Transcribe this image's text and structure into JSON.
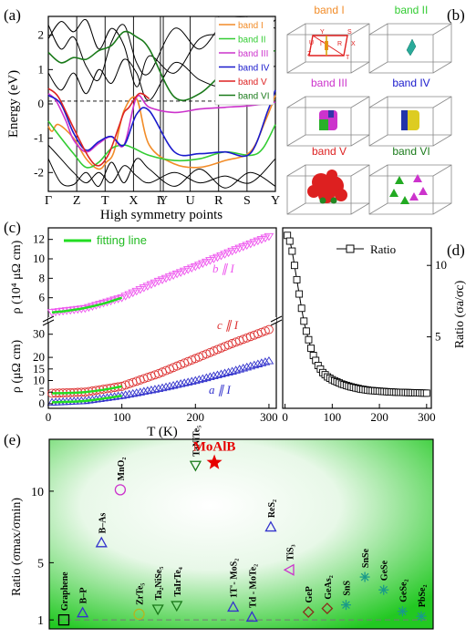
{
  "panel_labels": {
    "a": "(a)",
    "b": "(b)",
    "c": "(c)",
    "d": "(d)",
    "e": "(e)"
  },
  "colors": {
    "band_I": "#f28c28",
    "band_II": "#33cc33",
    "band_III": "#cc33cc",
    "band_IV": "#1a1acc",
    "band_V": "#dd2222",
    "band_VI": "#1a7a1a",
    "black": "#000000",
    "fit_green": "#22dd22",
    "b_magenta": "#ee55ee",
    "c_red": "#dd3333",
    "a_blue": "#3333cc",
    "star": "#e60000",
    "olive": "#b5b520",
    "teal": "#1a9a8a",
    "brown": "#8b2a1a",
    "bg_green": "#1ec81e"
  },
  "chart_data": [
    {
      "id": "a",
      "type": "line",
      "title": "",
      "xlabel": "High symmetry points",
      "ylabel": "Energy (eV)",
      "ylim": [
        -2.55,
        2.55
      ],
      "yticks": [
        "-2",
        "-1",
        "0",
        "1",
        "2"
      ],
      "kpoints": [
        "Γ",
        "Z",
        "T",
        "X",
        "Γ",
        "Y",
        "U",
        "R",
        "S",
        "Y"
      ],
      "legend": {
        "position": "top-right",
        "entries": [
          "band I",
          "band II",
          "band III",
          "band IV",
          "band V",
          "band VI"
        ]
      },
      "series": [
        {
          "name": "band I",
          "color_key": "band_I",
          "x": [
            0,
            0.15,
            0.4,
            1,
            1.5,
            2,
            2.3,
            2.6,
            3,
            3.5,
            4,
            5,
            6,
            7,
            8,
            8.6,
            9
          ],
          "y": [
            -0.65,
            -0.8,
            -0.6,
            -1.0,
            -1.6,
            -1.9,
            -1.7,
            -1.4,
            -0.2,
            0.15,
            -1.2,
            -1.75,
            -1.85,
            -1.65,
            -1.4,
            -0.5,
            0.25
          ]
        },
        {
          "name": "band II",
          "color_key": "band_II",
          "x": [
            0,
            0.3,
            1,
            1.5,
            2,
            2.5,
            3,
            3.4,
            4,
            5,
            6,
            7,
            8,
            8.5,
            9
          ],
          "y": [
            -0.5,
            -0.8,
            -1.45,
            -1.85,
            -1.7,
            -1.3,
            -1.2,
            -1.3,
            -1.5,
            -1.65,
            -1.6,
            -1.4,
            -1.5,
            -1.3,
            -0.6
          ]
        },
        {
          "name": "band III",
          "color_key": "band_III",
          "x": [
            0,
            0.3,
            0.7,
            1,
            1.5,
            2,
            2.5,
            3,
            3.5,
            4,
            5,
            6,
            7,
            8,
            9
          ],
          "y": [
            0.3,
            0.1,
            -0.5,
            -1.05,
            -1.4,
            -1.15,
            -0.95,
            -1.2,
            0.2,
            -0.1,
            -0.25,
            -0.15,
            -0.1,
            -0.05,
            0.05
          ]
        },
        {
          "name": "band IV",
          "color_key": "band_IV",
          "x": [
            0,
            0.5,
            1,
            1.5,
            2,
            2.5,
            3,
            3.5,
            4,
            5,
            6,
            7,
            8,
            8.7,
            9
          ],
          "y": [
            0.25,
            0.0,
            -0.85,
            -1.35,
            -1.1,
            -0.95,
            -1.2,
            -0.3,
            -0.2,
            -1.4,
            -1.45,
            -1.4,
            -1.45,
            -0.2,
            0.4
          ]
        },
        {
          "name": "band V",
          "color_key": "band_V",
          "x": [
            0,
            0.4,
            1,
            1.6,
            2,
            2.4,
            2.8,
            3,
            3.2,
            3.6,
            4
          ],
          "y": [
            0.45,
            0.2,
            -0.7,
            -1.55,
            -1.8,
            -1.45,
            -0.65,
            -0.25,
            -0.1,
            0.3,
            0.15
          ]
        },
        {
          "name": "band VI",
          "color_key": "band_VI",
          "x": [
            0,
            0.5,
            1,
            1.5,
            2,
            2.5,
            3,
            3.5,
            4,
            5,
            6,
            7,
            8,
            9
          ],
          "y": [
            1.5,
            1.2,
            1.35,
            1.3,
            1.55,
            1.7,
            2.1,
            1.95,
            1.6,
            0.2,
            0.3,
            0.95,
            1.4,
            1.55
          ]
        }
      ]
    },
    {
      "id": "c",
      "type": "scatter",
      "title": "",
      "xlabel": "T (K)",
      "xlim": [
        0,
        310
      ],
      "xticks": [
        0,
        100,
        200,
        300
      ],
      "upper": {
        "ylabel": "ρ (10⁴ μΩ cm)",
        "ylim": [
          4,
          13
        ],
        "yticks": [
          6,
          8,
          10,
          12
        ],
        "legend": {
          "position": "top-left",
          "entries": [
            "fitting line"
          ]
        },
        "series": [
          {
            "name": "b ∥ I",
            "marker": "triangle-down",
            "color_key": "b_magenta",
            "x": [
              5,
              50,
              100,
              150,
              200,
              250,
              300
            ],
            "y": [
              4.5,
              4.9,
              6.0,
              7.7,
              9.2,
              10.8,
              12.3
            ]
          }
        ],
        "fit": {
          "x": [
            5,
            25,
            50,
            75,
            100
          ],
          "y": [
            4.5,
            4.65,
            4.95,
            5.4,
            6.0
          ]
        }
      },
      "lower": {
        "ylabel": "ρ (μΩ cm)",
        "ylim": [
          -2,
          35
        ],
        "yticks": [
          0,
          5,
          10,
          15,
          20,
          30
        ],
        "series": [
          {
            "name": "c ∥ I",
            "marker": "circle",
            "color_key": "c_red",
            "x": [
              5,
              50,
              100,
              150,
              200,
              250,
              300
            ],
            "y": [
              4.5,
              5.0,
              7.5,
              13,
              19.5,
              26,
              32
            ]
          },
          {
            "name": "a ∥ I",
            "marker": "triangle-up",
            "color_key": "a_blue",
            "x": [
              5,
              50,
              100,
              150,
              200,
              250,
              300
            ],
            "y": [
              0.6,
              1.3,
              3.5,
              6.5,
              10,
              14,
              18.5
            ]
          }
        ],
        "fit": {
          "x": [
            5,
            25,
            50,
            75,
            100
          ],
          "y": [
            4.5,
            4.6,
            5.0,
            6.0,
            7.5
          ]
        }
      }
    },
    {
      "id": "d",
      "type": "line",
      "title": "",
      "xlabel": "",
      "ylabel": "Ratio (σa/σc)",
      "xlim": [
        -5,
        310
      ],
      "ylim": [
        0,
        12.5
      ],
      "xticks": [
        0,
        100,
        200,
        300
      ],
      "yticks": [
        5,
        10
      ],
      "legend": {
        "position": "top-right",
        "entries": [
          "Ratio"
        ]
      },
      "series": [
        {
          "name": "Ratio",
          "marker": "square",
          "x": [
            5,
            10,
            15,
            20,
            25,
            30,
            35,
            40,
            45,
            50,
            55,
            60,
            70,
            80,
            90,
            100,
            120,
            140,
            160,
            180,
            200,
            220,
            240,
            260,
            280,
            300
          ],
          "y": [
            12.1,
            11.7,
            11.0,
            10.0,
            9.0,
            8.0,
            7.0,
            6.1,
            5.4,
            4.8,
            4.2,
            3.7,
            3.0,
            2.5,
            2.2,
            2.0,
            1.7,
            1.5,
            1.35,
            1.25,
            1.2,
            1.15,
            1.12,
            1.1,
            1.08,
            1.06
          ]
        }
      ]
    },
    {
      "id": "e",
      "type": "scatter",
      "title": "",
      "xlabel": "",
      "ylabel": "Ratio (σmax/σmin)",
      "ylim": [
        0.5,
        13.5
      ],
      "yticks": [
        1,
        5,
        10
      ],
      "reference_line": 1,
      "points": [
        {
          "label": "Graphene",
          "value": 1.0,
          "marker": "square",
          "color_key": "black"
        },
        {
          "label": "B–P",
          "value": 1.5,
          "marker": "triangle-up",
          "color_key": "a_blue"
        },
        {
          "label": "B–As",
          "value": 6.4,
          "marker": "triangle-up",
          "color_key": "a_blue"
        },
        {
          "label": "MnO₂",
          "value": 10.1,
          "marker": "circle",
          "color_key": "band_III"
        },
        {
          "label": "ZrTe₅",
          "value": 1.4,
          "marker": "circle",
          "color_key": "olive"
        },
        {
          "label": "Ta₂NiSe₅",
          "value": 1.75,
          "marker": "triangle-down",
          "color_key": "band_VI"
        },
        {
          "label": "TaIrTe₄",
          "value": 2.0,
          "marker": "triangle-down",
          "color_key": "band_VI"
        },
        {
          "label": "TaNiTe₅",
          "value": 11.8,
          "marker": "triangle-down",
          "color_key": "band_VI"
        },
        {
          "label": "MoAlB",
          "value": 12.0,
          "marker": "star",
          "color_key": "star"
        },
        {
          "label": "1T'- MoS₂",
          "value": 1.9,
          "marker": "triangle-up",
          "color_key": "a_blue"
        },
        {
          "label": "Td - MoTe₂",
          "value": 1.2,
          "marker": "triangle-up",
          "color_key": "a_blue"
        },
        {
          "label": "ReS₂",
          "value": 7.5,
          "marker": "triangle-up",
          "color_key": "a_blue"
        },
        {
          "label": "TiS₃",
          "value": 4.5,
          "marker": "triangle-left",
          "color_key": "band_III"
        },
        {
          "label": "GeP",
          "value": 1.55,
          "marker": "diamond",
          "color_key": "brown"
        },
        {
          "label": "GeAs₂",
          "value": 1.8,
          "marker": "diamond",
          "color_key": "brown"
        },
        {
          "label": "SnS",
          "value": 2.05,
          "marker": "asterisk",
          "color_key": "teal"
        },
        {
          "label": "SnSe",
          "value": 4.0,
          "marker": "asterisk",
          "color_key": "teal"
        },
        {
          "label": "GeSe",
          "value": 3.1,
          "marker": "asterisk",
          "color_key": "teal"
        },
        {
          "label": "GeSe₂",
          "value": 1.6,
          "marker": "asterisk",
          "color_key": "teal"
        },
        {
          "label": "PbSe₂",
          "value": 1.25,
          "marker": "asterisk",
          "color_key": "teal"
        }
      ]
    }
  ],
  "panel_b": {
    "boxes": [
      {
        "label": "band I",
        "color_key": "band_I"
      },
      {
        "label": "band II",
        "color_key": "band_II"
      },
      {
        "label": "band III",
        "color_key": "band_III"
      },
      {
        "label": "band IV",
        "color_key": "band_IV"
      },
      {
        "label": "band V",
        "color_key": "band_V"
      },
      {
        "label": "band VI",
        "color_key": "band_VI"
      }
    ],
    "bz_labels": [
      "Y",
      "S",
      "U",
      "R",
      "X",
      "Z",
      "T",
      "Γ"
    ]
  },
  "panel_c_labels": {
    "b": "b ∥ I",
    "c": "c ∥ I",
    "a": "a ∥ I"
  }
}
